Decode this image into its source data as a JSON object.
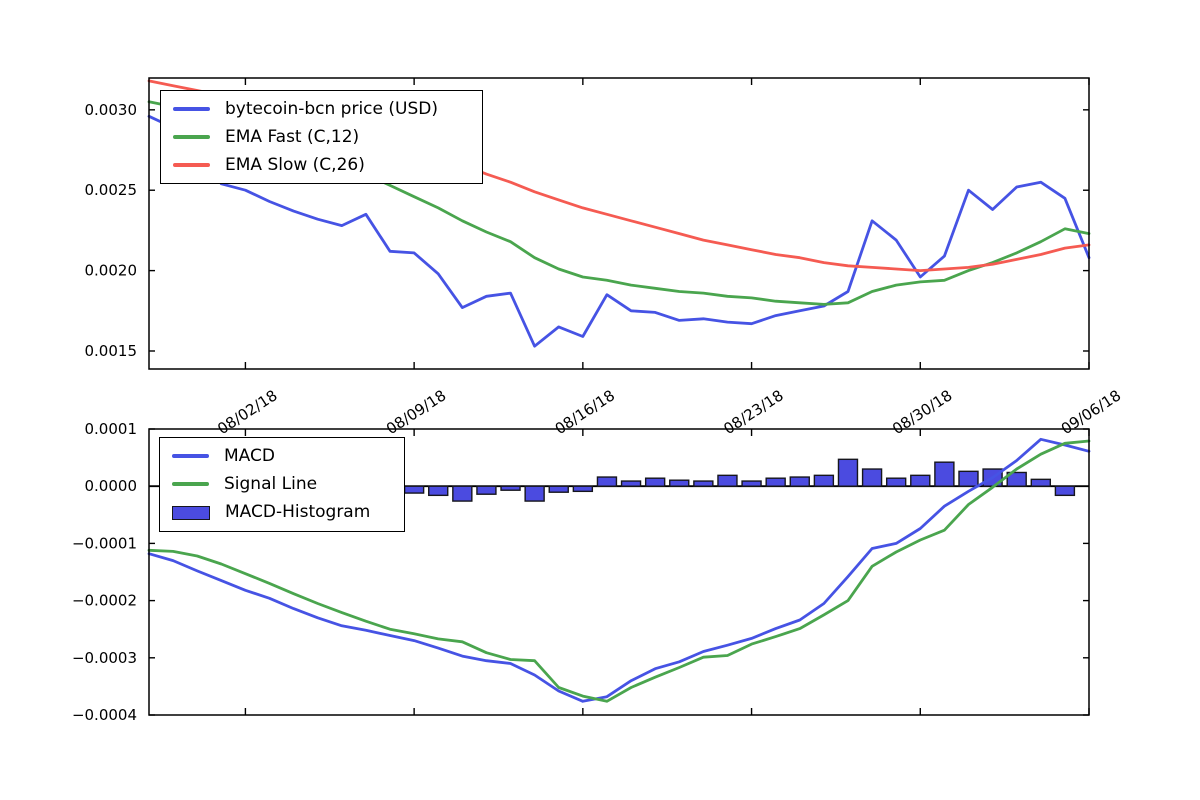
{
  "figure": {
    "background": "#ffffff"
  },
  "price_chart": {
    "y_tick_labels": [
      "0.0030",
      "0.0025",
      "0.0020",
      "0.0015"
    ],
    "x_tick_labels": [
      "08/02/18",
      "08/09/18",
      "08/16/18",
      "08/23/18",
      "08/30/18",
      "09/06/18"
    ]
  },
  "macd_chart": {
    "y_tick_labels": [
      "0.0001",
      "0.0000",
      "−0.0001",
      "−0.0002",
      "−0.0003",
      "−0.0004"
    ]
  },
  "colors": {
    "price_line": "#4653e4",
    "ema_fast": "#4aa54e",
    "ema_slow": "#f55b52",
    "macd_line": "#4653e4",
    "signal_line": "#4aa54e",
    "histogram_fill": "#4b4be0",
    "histogram_edge": "#16161d",
    "axis": "#000000"
  },
  "chart_data": [
    {
      "type": "line",
      "title": "",
      "xlabel": "",
      "ylabel": "",
      "legend_position": "upper left",
      "grid": false,
      "ylim": [
        0.001388,
        0.003198
      ],
      "yticks": [
        0.003,
        0.0025,
        0.002,
        0.0015
      ],
      "xticks": [
        {
          "index": 4,
          "label": "08/02/18"
        },
        {
          "index": 11,
          "label": "08/09/18"
        },
        {
          "index": 18,
          "label": "08/16/18"
        },
        {
          "index": 25,
          "label": "08/23/18"
        },
        {
          "index": 32,
          "label": "08/30/18"
        },
        {
          "index": 39,
          "label": "09/06/18"
        }
      ],
      "x": [
        "07/29/18",
        "07/30/18",
        "07/31/18",
        "08/01/18",
        "08/02/18",
        "08/03/18",
        "08/04/18",
        "08/05/18",
        "08/06/18",
        "08/07/18",
        "08/08/18",
        "08/09/18",
        "08/10/18",
        "08/11/18",
        "08/12/18",
        "08/13/18",
        "08/14/18",
        "08/15/18",
        "08/16/18",
        "08/17/18",
        "08/18/18",
        "08/19/18",
        "08/20/18",
        "08/21/18",
        "08/22/18",
        "08/23/18",
        "08/24/18",
        "08/25/18",
        "08/26/18",
        "08/27/18",
        "08/28/18",
        "08/29/18",
        "08/30/18",
        "08/31/18",
        "09/01/18",
        "09/02/18",
        "09/03/18",
        "09/04/18",
        "09/05/18",
        "09/06/18"
      ],
      "series": [
        {
          "name": "bytecoin-bcn price (USD)",
          "color": "#4653e4",
          "style": "line",
          "values": [
            0.00296,
            0.00289,
            0.00276,
            0.00254,
            0.0025,
            0.00243,
            0.00237,
            0.00232,
            0.00228,
            0.00235,
            0.00212,
            0.00211,
            0.00198,
            0.00177,
            0.00184,
            0.00186,
            0.00153,
            0.00165,
            0.00159,
            0.00185,
            0.00175,
            0.00174,
            0.00169,
            0.0017,
            0.00168,
            0.00167,
            0.00172,
            0.00175,
            0.00178,
            0.00187,
            0.00231,
            0.00219,
            0.00196,
            0.00209,
            0.0025,
            0.00238,
            0.00252,
            0.00255,
            0.00245,
            0.00208
          ]
        },
        {
          "name": "EMA Fast (C,12)",
          "color": "#4aa54e",
          "style": "line",
          "values": [
            0.00305,
            0.00302,
            0.00298,
            0.00293,
            0.00288,
            0.00283,
            0.00277,
            0.00271,
            0.00265,
            0.0026,
            0.00253,
            0.00246,
            0.00239,
            0.00231,
            0.00224,
            0.00218,
            0.00208,
            0.00201,
            0.00196,
            0.00194,
            0.00191,
            0.00189,
            0.00187,
            0.00186,
            0.00184,
            0.00183,
            0.00181,
            0.0018,
            0.00179,
            0.0018,
            0.00187,
            0.00191,
            0.00193,
            0.00194,
            0.002,
            0.00205,
            0.00211,
            0.00218,
            0.00226,
            0.00223
          ]
        },
        {
          "name": "EMA Slow (C,26)",
          "color": "#f55b52",
          "style": "line",
          "values": [
            0.00318,
            0.00315,
            0.00312,
            0.00309,
            0.00306,
            0.00302,
            0.00299,
            0.00295,
            0.00291,
            0.00287,
            0.00282,
            0.00277,
            0.00271,
            0.00266,
            0.0026,
            0.00255,
            0.00249,
            0.00244,
            0.00239,
            0.00235,
            0.00231,
            0.00227,
            0.00223,
            0.00219,
            0.00216,
            0.00213,
            0.0021,
            0.00208,
            0.00205,
            0.00203,
            0.00202,
            0.00201,
            0.002,
            0.00201,
            0.00202,
            0.00204,
            0.00207,
            0.0021,
            0.00214,
            0.00216
          ]
        }
      ]
    },
    {
      "type": "line+bar",
      "title": "",
      "xlabel": "",
      "ylabel": "",
      "legend_position": "upper left",
      "grid": false,
      "ylim": [
        -0.0004,
        0.0001
      ],
      "yticks": [
        0.0001,
        0.0,
        -0.0001,
        -0.0002,
        -0.0003,
        -0.0004
      ],
      "xticks": [
        {
          "index": 4,
          "label": ""
        },
        {
          "index": 11,
          "label": ""
        },
        {
          "index": 18,
          "label": ""
        },
        {
          "index": 25,
          "label": ""
        },
        {
          "index": 32,
          "label": ""
        },
        {
          "index": 39,
          "label": ""
        }
      ],
      "x": [
        "07/29/18",
        "07/30/18",
        "07/31/18",
        "08/01/18",
        "08/02/18",
        "08/03/18",
        "08/04/18",
        "08/05/18",
        "08/06/18",
        "08/07/18",
        "08/08/18",
        "08/09/18",
        "08/10/18",
        "08/11/18",
        "08/12/18",
        "08/13/18",
        "08/14/18",
        "08/15/18",
        "08/16/18",
        "08/17/18",
        "08/18/18",
        "08/19/18",
        "08/20/18",
        "08/21/18",
        "08/22/18",
        "08/23/18",
        "08/24/18",
        "08/25/18",
        "08/26/18",
        "08/27/18",
        "08/28/18",
        "08/29/18",
        "08/30/18",
        "08/31/18",
        "09/01/18",
        "09/02/18",
        "09/03/18",
        "09/04/18",
        "09/05/18",
        "09/06/18"
      ],
      "series": [
        {
          "name": "MACD",
          "color": "#4653e4",
          "style": "line",
          "values": [
            -0.000118,
            -0.00013,
            -0.000148,
            -0.000165,
            -0.000182,
            -0.000196,
            -0.000214,
            -0.00023,
            -0.000244,
            -0.000252,
            -0.000261,
            -0.00027,
            -0.000283,
            -0.000297,
            -0.000305,
            -0.00031,
            -0.00033,
            -0.000358,
            -0.000376,
            -0.000368,
            -0.00034,
            -0.000319,
            -0.000307,
            -0.000289,
            -0.000278,
            -0.000266,
            -0.000249,
            -0.000234,
            -0.000205,
            -0.000158,
            -0.000109,
            -0.0001,
            -7.4e-05,
            -3.5e-05,
            -9e-06,
            1.5e-05,
            4.5e-05,
            8.2e-05,
            7.2e-05,
            6.1e-05
          ]
        },
        {
          "name": "Signal Line",
          "color": "#4aa54e",
          "style": "line",
          "values": [
            -0.000112,
            -0.000114,
            -0.000122,
            -0.000136,
            -0.000153,
            -0.00017,
            -0.000188,
            -0.000205,
            -0.000221,
            -0.000236,
            -0.00025,
            -0.000258,
            -0.000267,
            -0.000272,
            -0.000291,
            -0.000303,
            -0.000305,
            -0.000352,
            -0.000367,
            -0.000376,
            -0.000352,
            -0.000334,
            -0.000317,
            -0.000299,
            -0.000296,
            -0.000276,
            -0.000263,
            -0.000249,
            -0.000225,
            -0.0002,
            -0.00014,
            -0.000115,
            -9.4e-05,
            -7.7e-05,
            -3.2e-05,
            -2e-06,
            3e-05,
            5.6e-05,
            7.5e-05,
            7.9e-05
          ]
        },
        {
          "name": "MACD-Histogram",
          "color": "#4b4be0",
          "style": "bar",
          "values": [
            null,
            null,
            null,
            null,
            null,
            null,
            null,
            null,
            null,
            null,
            null,
            -1.2e-05,
            -1.6e-05,
            -2.6e-05,
            -1.4e-05,
            -7e-06,
            -2.6e-05,
            -1.05e-05,
            -9e-06,
            1.6e-05,
            9e-06,
            1.4e-05,
            1.05e-05,
            9e-06,
            1.9e-05,
            9e-06,
            1.4e-05,
            1.6e-05,
            1.9e-05,
            4.7e-05,
            3e-05,
            1.4e-05,
            1.9e-05,
            4.2e-05,
            2.6e-05,
            3e-05,
            2.4e-05,
            1.2e-05,
            -1.6e-05,
            null
          ]
        }
      ]
    }
  ]
}
